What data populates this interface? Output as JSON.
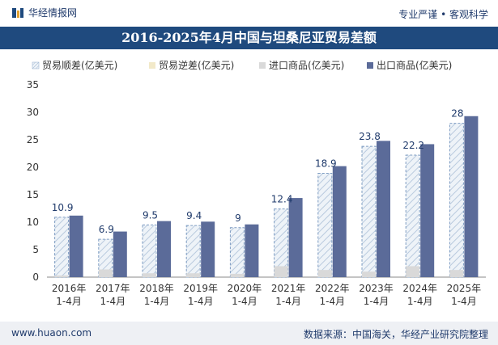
{
  "header": {
    "brand": "华经情报网",
    "tagline": "专业严谨 • 客观科学"
  },
  "footer": {
    "site": "www.huaon.com",
    "source": "数据来源：中国海关，华经产业研究院整理"
  },
  "chart_data": {
    "type": "bar",
    "title": "2016-2025年4月中国与坦桑尼亚贸易差额",
    "categories": [
      "2016年\n1-4月",
      "2017年\n1-4月",
      "2018年\n1-4月",
      "2019年\n1-4月",
      "2020年\n1-4月",
      "2021年\n1-4月",
      "2022年\n1-4月",
      "2023年\n1-4月",
      "2024年\n1-4月",
      "2025年\n1-4月"
    ],
    "ylim": [
      0,
      35
    ],
    "yticks": [
      0,
      5,
      10,
      15,
      20,
      25,
      30,
      35
    ],
    "grid": false,
    "legend_position": "top",
    "series": [
      {
        "name": "贸易顺差(亿美元)",
        "values": [
          10.9,
          6.9,
          9.5,
          9.4,
          9,
          12.4,
          18.9,
          23.8,
          22.2,
          28
        ],
        "color": "#dce6f0",
        "style": "hatched",
        "labels": [
          "10.9",
          "6.9",
          "9.5",
          "9.4",
          "9",
          "12.4",
          "18.9",
          "23.8",
          "22.2",
          "28"
        ]
      },
      {
        "name": "贸易逆差(亿美元)",
        "values": [
          0,
          0,
          0,
          0,
          0,
          0,
          0,
          0,
          0,
          0
        ],
        "color": "#f2e9c9"
      },
      {
        "name": "进口商品(亿美元)",
        "values": [
          0.3,
          1.4,
          0.7,
          0.7,
          0.6,
          2.0,
          1.3,
          1.0,
          2.0,
          1.3
        ],
        "color": "#d9d9d9"
      },
      {
        "name": "出口商品(亿美元)",
        "values": [
          11.2,
          8.3,
          10.2,
          10.1,
          9.6,
          14.4,
          20.2,
          24.8,
          24.2,
          29.3
        ],
        "color": "#5b6b99"
      }
    ]
  }
}
